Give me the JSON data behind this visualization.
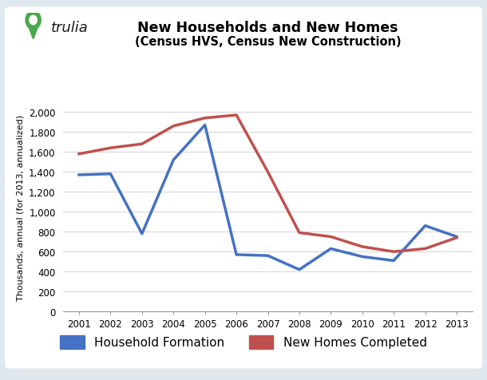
{
  "title": "New Households and New Homes",
  "subtitle": "(Census HVS, Census New Construction)",
  "ylabel": "Thousands, annual (for 2013, annualized)",
  "years": [
    2001,
    2002,
    2003,
    2004,
    2005,
    2006,
    2007,
    2008,
    2009,
    2010,
    2011,
    2012,
    2013
  ],
  "household_formation": [
    1370,
    1380,
    780,
    1520,
    1870,
    570,
    560,
    420,
    630,
    550,
    510,
    860,
    750
  ],
  "new_homes_completed": [
    1580,
    1640,
    1680,
    1860,
    1940,
    1970,
    1400,
    790,
    750,
    650,
    600,
    630,
    740
  ],
  "hh_color": "#4472C4",
  "nh_color": "#C0504D",
  "line_width": 2.5,
  "ylim": [
    0,
    2100
  ],
  "yticks": [
    0,
    200,
    400,
    600,
    800,
    1000,
    1200,
    1400,
    1600,
    1800,
    2000
  ],
  "bg_color": "#E0E8EF",
  "plot_bg_color": "#FFFFFF",
  "legend_hh": "Household Formation",
  "legend_nh": "New Homes Completed",
  "trulia_green": "#4BA84B",
  "trulia_text": "trulia"
}
